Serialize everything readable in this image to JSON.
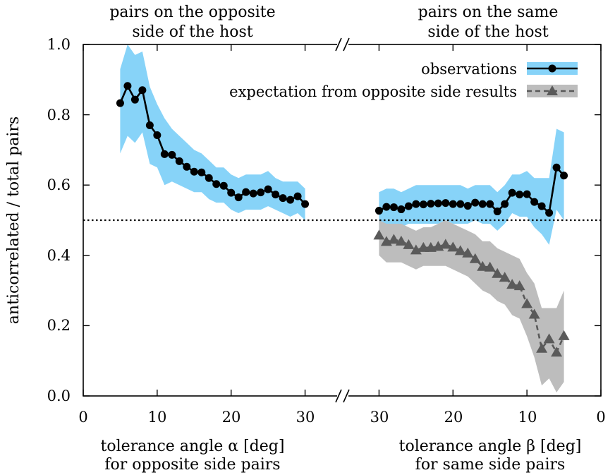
{
  "chart_data": {
    "type": "line",
    "ylabel": "anticorrelated  / total pairs",
    "ylim": [
      0,
      1
    ],
    "yticks": [
      "0.0",
      "0.2",
      "0.4",
      "0.6",
      "0.8",
      "1.0"
    ],
    "y_reference_line": 0.5,
    "grid": false,
    "legend_position": "top-right",
    "panels": [
      {
        "title_lines": [
          "pairs on the opposite",
          "side of the host"
        ],
        "xlabel_lines": [
          "tolerance angle α [deg]",
          "for opposite side pairs"
        ],
        "xlim": [
          0,
          35
        ],
        "x_direction": "increasing",
        "xticks": [
          "0",
          "10",
          "20",
          "30"
        ]
      },
      {
        "title_lines": [
          "pairs on the same",
          "side of the host"
        ],
        "xlabel_lines": [
          "tolerance angle β [deg]",
          "for same side pairs"
        ],
        "xlim": [
          35,
          0
        ],
        "x_direction": "decreasing",
        "xticks": [
          "30",
          "20",
          "10",
          "0"
        ]
      }
    ],
    "series": [
      {
        "name": "observations",
        "color": "#000000",
        "band_color": "#87d3f8",
        "marker": "circle",
        "panel": 0,
        "x": [
          5,
          6,
          7,
          8,
          9,
          10,
          11,
          12,
          13,
          14,
          15,
          16,
          17,
          18,
          19,
          20,
          21,
          22,
          23,
          24,
          25,
          26,
          27,
          28,
          29,
          30
        ],
        "y": [
          0.833,
          0.882,
          0.843,
          0.87,
          0.77,
          0.742,
          0.688,
          0.686,
          0.668,
          0.652,
          0.638,
          0.636,
          0.62,
          0.603,
          0.598,
          0.578,
          0.565,
          0.58,
          0.576,
          0.579,
          0.588,
          0.573,
          0.563,
          0.558,
          0.568,
          0.546
        ],
        "band_upper": [
          0.93,
          1.0,
          0.97,
          0.98,
          0.88,
          0.83,
          0.79,
          0.76,
          0.74,
          0.72,
          0.7,
          0.69,
          0.67,
          0.65,
          0.65,
          0.63,
          0.62,
          0.63,
          0.63,
          0.63,
          0.64,
          0.62,
          0.61,
          0.61,
          0.61,
          0.59
        ],
        "band_lower": [
          0.69,
          0.74,
          0.72,
          0.75,
          0.66,
          0.65,
          0.6,
          0.61,
          0.6,
          0.59,
          0.58,
          0.58,
          0.56,
          0.55,
          0.55,
          0.53,
          0.52,
          0.53,
          0.53,
          0.53,
          0.54,
          0.53,
          0.52,
          0.51,
          0.52,
          0.5
        ]
      },
      {
        "name": "observations",
        "color": "#000000",
        "band_color": "#87d3f8",
        "marker": "circle",
        "panel": 1,
        "x": [
          30,
          29,
          28,
          27,
          26,
          25,
          24,
          23,
          22,
          21,
          20,
          19,
          18,
          17,
          16,
          15,
          14,
          13,
          12,
          11,
          10,
          9,
          8,
          7,
          6,
          5
        ],
        "y": [
          0.527,
          0.538,
          0.537,
          0.531,
          0.54,
          0.546,
          0.545,
          0.547,
          0.548,
          0.549,
          0.546,
          0.546,
          0.541,
          0.55,
          0.546,
          0.546,
          0.525,
          0.546,
          0.578,
          0.573,
          0.574,
          0.552,
          0.54,
          0.521,
          0.65,
          0.627
        ],
        "band_upper": [
          0.58,
          0.59,
          0.59,
          0.58,
          0.59,
          0.6,
          0.6,
          0.6,
          0.6,
          0.6,
          0.6,
          0.6,
          0.59,
          0.6,
          0.6,
          0.6,
          0.58,
          0.6,
          0.63,
          0.63,
          0.64,
          0.62,
          0.62,
          0.62,
          0.76,
          0.75
        ],
        "band_lower": [
          0.47,
          0.49,
          0.48,
          0.48,
          0.49,
          0.49,
          0.49,
          0.49,
          0.49,
          0.5,
          0.49,
          0.49,
          0.49,
          0.5,
          0.49,
          0.49,
          0.47,
          0.49,
          0.52,
          0.51,
          0.51,
          0.48,
          0.46,
          0.43,
          0.53,
          0.5
        ]
      },
      {
        "name": "expectation from opposite side results",
        "color": "#5a5a5a",
        "band_color": "#bdbdbd",
        "marker": "triangle",
        "dashed": true,
        "panel": 1,
        "x": [
          30,
          29,
          28,
          27,
          26,
          25,
          24,
          23,
          22,
          21,
          20,
          19,
          18,
          17,
          16,
          15,
          14,
          13,
          12,
          11,
          10,
          9,
          8,
          7,
          6,
          5
        ],
        "y": [
          0.457,
          0.439,
          0.445,
          0.44,
          0.43,
          0.415,
          0.422,
          0.422,
          0.425,
          0.431,
          0.423,
          0.413,
          0.406,
          0.39,
          0.368,
          0.366,
          0.348,
          0.337,
          0.317,
          0.313,
          0.262,
          0.232,
          0.135,
          0.162,
          0.124,
          0.171
        ],
        "band_upper": [
          0.5,
          0.49,
          0.49,
          0.49,
          0.48,
          0.47,
          0.48,
          0.48,
          0.49,
          0.5,
          0.49,
          0.48,
          0.47,
          0.46,
          0.44,
          0.44,
          0.42,
          0.41,
          0.4,
          0.39,
          0.35,
          0.32,
          0.25,
          0.25,
          0.25,
          0.3
        ],
        "band_lower": [
          0.4,
          0.38,
          0.38,
          0.38,
          0.37,
          0.36,
          0.37,
          0.37,
          0.37,
          0.37,
          0.36,
          0.35,
          0.34,
          0.32,
          0.3,
          0.29,
          0.27,
          0.26,
          0.23,
          0.22,
          0.17,
          0.11,
          0.03,
          0.05,
          0.01,
          0.04
        ]
      }
    ]
  }
}
